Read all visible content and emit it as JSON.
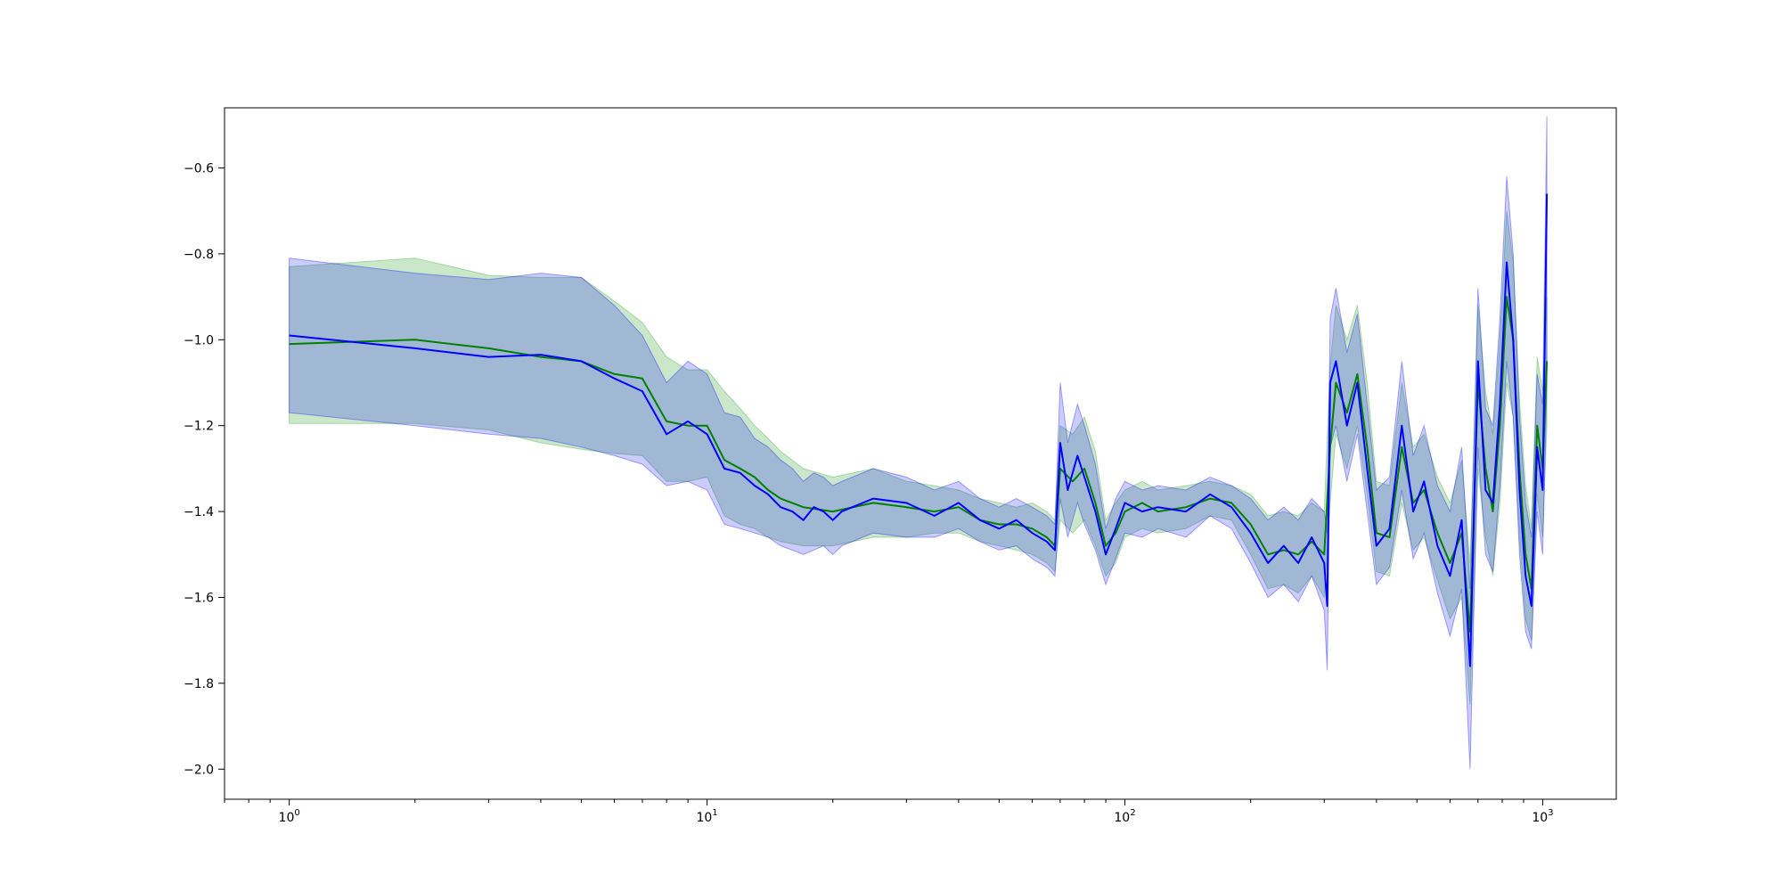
{
  "chart_data": {
    "type": "line",
    "title": "",
    "xlabel": "",
    "ylabel": "",
    "xscale": "log",
    "xlim": [
      0.7,
      1500
    ],
    "ylim": [
      -2.07,
      -0.46
    ],
    "grid": false,
    "legend": "none",
    "x_ticks": [
      {
        "value": 1,
        "base": "10",
        "exp": "0"
      },
      {
        "value": 10,
        "base": "10",
        "exp": "1"
      },
      {
        "value": 100,
        "base": "10",
        "exp": "2"
      },
      {
        "value": 1000,
        "base": "10",
        "exp": "3"
      }
    ],
    "y_ticks": [
      {
        "value": -0.6,
        "label": "−0.6"
      },
      {
        "value": -0.8,
        "label": "−0.8"
      },
      {
        "value": -1.0,
        "label": "−1.0"
      },
      {
        "value": -1.2,
        "label": "−1.2"
      },
      {
        "value": -1.4,
        "label": "−1.4"
      },
      {
        "value": -1.6,
        "label": "−1.6"
      },
      {
        "value": -1.8,
        "label": "−1.8"
      },
      {
        "value": -2.0,
        "label": "−2.0"
      }
    ],
    "series": [
      {
        "color": "#008000",
        "band_color": "#2ca02c",
        "band_opacity": 0.25,
        "points": [
          [
            1,
            -1.01,
            -1.195,
            -0.83
          ],
          [
            2,
            -1.0,
            -1.195,
            -0.81
          ],
          [
            3,
            -1.02,
            -1.21,
            -0.85
          ],
          [
            4,
            -1.04,
            -1.24,
            -0.855
          ],
          [
            5,
            -1.05,
            -1.255,
            -0.855
          ],
          [
            6,
            -1.08,
            -1.265,
            -0.91
          ],
          [
            7,
            -1.09,
            -1.27,
            -0.96
          ],
          [
            8,
            -1.19,
            -1.33,
            -1.04
          ],
          [
            9,
            -1.2,
            -1.33,
            -1.07
          ],
          [
            10,
            -1.2,
            -1.32,
            -1.07
          ],
          [
            11,
            -1.28,
            -1.41,
            -1.12
          ],
          [
            12,
            -1.3,
            -1.43,
            -1.16
          ],
          [
            13,
            -1.32,
            -1.44,
            -1.2
          ],
          [
            14,
            -1.35,
            -1.46,
            -1.23
          ],
          [
            15,
            -1.37,
            -1.47,
            -1.26
          ],
          [
            17,
            -1.39,
            -1.48,
            -1.3
          ],
          [
            20,
            -1.4,
            -1.48,
            -1.32
          ],
          [
            25,
            -1.38,
            -1.46,
            -1.3
          ],
          [
            30,
            -1.39,
            -1.46,
            -1.33
          ],
          [
            35,
            -1.4,
            -1.45,
            -1.34
          ],
          [
            40,
            -1.39,
            -1.45,
            -1.35
          ],
          [
            45,
            -1.42,
            -1.47,
            -1.37
          ],
          [
            50,
            -1.43,
            -1.48,
            -1.38
          ],
          [
            55,
            -1.43,
            -1.49,
            -1.39
          ],
          [
            60,
            -1.44,
            -1.5,
            -1.38
          ],
          [
            65,
            -1.46,
            -1.52,
            -1.4
          ],
          [
            68,
            -1.48,
            -1.54,
            -1.42
          ],
          [
            70,
            -1.3,
            -1.42,
            -1.2
          ],
          [
            75,
            -1.33,
            -1.45,
            -1.22
          ],
          [
            80,
            -1.3,
            -1.42,
            -1.18
          ],
          [
            85,
            -1.38,
            -1.48,
            -1.26
          ],
          [
            90,
            -1.48,
            -1.55,
            -1.42
          ],
          [
            95,
            -1.45,
            -1.52,
            -1.38
          ],
          [
            100,
            -1.4,
            -1.46,
            -1.35
          ],
          [
            110,
            -1.38,
            -1.44,
            -1.33
          ],
          [
            120,
            -1.4,
            -1.45,
            -1.35
          ],
          [
            140,
            -1.39,
            -1.44,
            -1.34
          ],
          [
            160,
            -1.37,
            -1.41,
            -1.33
          ],
          [
            180,
            -1.38,
            -1.42,
            -1.34
          ],
          [
            200,
            -1.43,
            -1.5,
            -1.36
          ],
          [
            220,
            -1.5,
            -1.58,
            -1.41
          ],
          [
            240,
            -1.49,
            -1.57,
            -1.4
          ],
          [
            260,
            -1.5,
            -1.59,
            -1.41
          ],
          [
            280,
            -1.47,
            -1.55,
            -1.38
          ],
          [
            300,
            -1.5,
            -1.6,
            -1.4
          ],
          [
            310,
            -1.25,
            -1.38,
            -1.06
          ],
          [
            320,
            -1.1,
            -1.22,
            -0.92
          ],
          [
            340,
            -1.17,
            -1.3,
            -1.0
          ],
          [
            360,
            -1.08,
            -1.2,
            -0.92
          ],
          [
            380,
            -1.25,
            -1.36,
            -1.1
          ],
          [
            400,
            -1.45,
            -1.54,
            -1.33
          ],
          [
            430,
            -1.46,
            -1.55,
            -1.34
          ],
          [
            460,
            -1.25,
            -1.38,
            -1.1
          ],
          [
            490,
            -1.38,
            -1.49,
            -1.25
          ],
          [
            520,
            -1.35,
            -1.46,
            -1.22
          ],
          [
            560,
            -1.45,
            -1.56,
            -1.32
          ],
          [
            600,
            -1.52,
            -1.65,
            -1.38
          ],
          [
            640,
            -1.45,
            -1.6,
            -1.28
          ],
          [
            670,
            -1.68,
            -1.85,
            -1.52
          ],
          [
            700,
            -1.1,
            -1.3,
            -0.92
          ],
          [
            730,
            -1.3,
            -1.46,
            -1.12
          ],
          [
            760,
            -1.4,
            -1.55,
            -1.22
          ],
          [
            790,
            -1.2,
            -1.38,
            -1.0
          ],
          [
            820,
            -0.9,
            -1.1,
            -0.7
          ],
          [
            850,
            -1.0,
            -1.18,
            -0.82
          ],
          [
            880,
            -1.3,
            -1.46,
            -1.14
          ],
          [
            910,
            -1.5,
            -1.65,
            -1.34
          ],
          [
            940,
            -1.58,
            -1.7,
            -1.44
          ],
          [
            970,
            -1.2,
            -1.36,
            -1.04
          ],
          [
            1000,
            -1.3,
            -1.46,
            -1.12
          ],
          [
            1023,
            -1.05,
            -1.2,
            -0.9
          ]
        ]
      },
      {
        "color": "#0000ff",
        "band_color": "#0000ff",
        "band_opacity": 0.2,
        "points": [
          [
            1,
            -0.99,
            -1.17,
            -0.81
          ],
          [
            2,
            -1.02,
            -1.2,
            -0.845
          ],
          [
            3,
            -1.04,
            -1.22,
            -0.86
          ],
          [
            4,
            -1.035,
            -1.23,
            -0.845
          ],
          [
            5,
            -1.05,
            -1.25,
            -0.855
          ],
          [
            6,
            -1.09,
            -1.27,
            -0.92
          ],
          [
            7,
            -1.12,
            -1.29,
            -0.99
          ],
          [
            8,
            -1.22,
            -1.34,
            -1.1
          ],
          [
            9,
            -1.19,
            -1.33,
            -1.05
          ],
          [
            10,
            -1.22,
            -1.35,
            -1.08
          ],
          [
            11,
            -1.3,
            -1.43,
            -1.17
          ],
          [
            12,
            -1.31,
            -1.44,
            -1.18
          ],
          [
            13,
            -1.34,
            -1.45,
            -1.23
          ],
          [
            14,
            -1.36,
            -1.46,
            -1.25
          ],
          [
            15,
            -1.39,
            -1.48,
            -1.28
          ],
          [
            16,
            -1.4,
            -1.49,
            -1.3
          ],
          [
            17,
            -1.42,
            -1.5,
            -1.33
          ],
          [
            18,
            -1.39,
            -1.49,
            -1.31
          ],
          [
            19,
            -1.4,
            -1.48,
            -1.32
          ],
          [
            20,
            -1.42,
            -1.5,
            -1.34
          ],
          [
            21,
            -1.4,
            -1.48,
            -1.33
          ],
          [
            25,
            -1.37,
            -1.45,
            -1.3
          ],
          [
            30,
            -1.38,
            -1.46,
            -1.32
          ],
          [
            35,
            -1.41,
            -1.46,
            -1.35
          ],
          [
            40,
            -1.38,
            -1.44,
            -1.33
          ],
          [
            45,
            -1.42,
            -1.47,
            -1.37
          ],
          [
            50,
            -1.44,
            -1.49,
            -1.39
          ],
          [
            55,
            -1.42,
            -1.48,
            -1.37
          ],
          [
            60,
            -1.45,
            -1.51,
            -1.39
          ],
          [
            65,
            -1.47,
            -1.53,
            -1.41
          ],
          [
            68,
            -1.49,
            -1.55,
            -1.43
          ],
          [
            70,
            -1.24,
            -1.37,
            -1.1
          ],
          [
            73,
            -1.35,
            -1.46,
            -1.24
          ],
          [
            77,
            -1.27,
            -1.38,
            -1.15
          ],
          [
            80,
            -1.32,
            -1.43,
            -1.2
          ],
          [
            85,
            -1.4,
            -1.49,
            -1.29
          ],
          [
            90,
            -1.5,
            -1.57,
            -1.44
          ],
          [
            95,
            -1.44,
            -1.51,
            -1.37
          ],
          [
            100,
            -1.38,
            -1.45,
            -1.33
          ],
          [
            110,
            -1.4,
            -1.46,
            -1.35
          ],
          [
            120,
            -1.39,
            -1.44,
            -1.34
          ],
          [
            140,
            -1.4,
            -1.46,
            -1.35
          ],
          [
            160,
            -1.36,
            -1.41,
            -1.32
          ],
          [
            180,
            -1.39,
            -1.44,
            -1.34
          ],
          [
            200,
            -1.45,
            -1.52,
            -1.37
          ],
          [
            220,
            -1.52,
            -1.6,
            -1.42
          ],
          [
            240,
            -1.48,
            -1.57,
            -1.39
          ],
          [
            260,
            -1.52,
            -1.61,
            -1.42
          ],
          [
            280,
            -1.46,
            -1.55,
            -1.37
          ],
          [
            300,
            -1.52,
            -1.63,
            -1.4
          ],
          [
            305,
            -1.62,
            -1.77,
            -1.45
          ],
          [
            310,
            -1.1,
            -1.25,
            -0.95
          ],
          [
            320,
            -1.05,
            -1.2,
            -0.88
          ],
          [
            340,
            -1.2,
            -1.33,
            -1.03
          ],
          [
            360,
            -1.1,
            -1.22,
            -0.94
          ],
          [
            380,
            -1.3,
            -1.4,
            -1.15
          ],
          [
            400,
            -1.48,
            -1.57,
            -1.35
          ],
          [
            430,
            -1.44,
            -1.53,
            -1.32
          ],
          [
            460,
            -1.2,
            -1.35,
            -1.05
          ],
          [
            490,
            -1.4,
            -1.51,
            -1.27
          ],
          [
            520,
            -1.33,
            -1.45,
            -1.2
          ],
          [
            560,
            -1.48,
            -1.59,
            -1.34
          ],
          [
            600,
            -1.55,
            -1.69,
            -1.4
          ],
          [
            640,
            -1.42,
            -1.58,
            -1.25
          ],
          [
            670,
            -1.76,
            -2.0,
            -1.58
          ],
          [
            700,
            -1.05,
            -1.25,
            -0.88
          ],
          [
            730,
            -1.35,
            -1.5,
            -1.16
          ],
          [
            760,
            -1.38,
            -1.54,
            -1.2
          ],
          [
            790,
            -1.15,
            -1.34,
            -0.95
          ],
          [
            820,
            -0.82,
            -1.05,
            -0.62
          ],
          [
            850,
            -1.0,
            -1.18,
            -0.8
          ],
          [
            880,
            -1.35,
            -1.5,
            -1.18
          ],
          [
            910,
            -1.55,
            -1.68,
            -1.38
          ],
          [
            940,
            -1.62,
            -1.72,
            -1.46
          ],
          [
            970,
            -1.25,
            -1.4,
            -1.08
          ],
          [
            1000,
            -1.35,
            -1.5,
            -1.15
          ],
          [
            1023,
            -0.66,
            -1.1,
            -0.48
          ]
        ]
      }
    ]
  }
}
